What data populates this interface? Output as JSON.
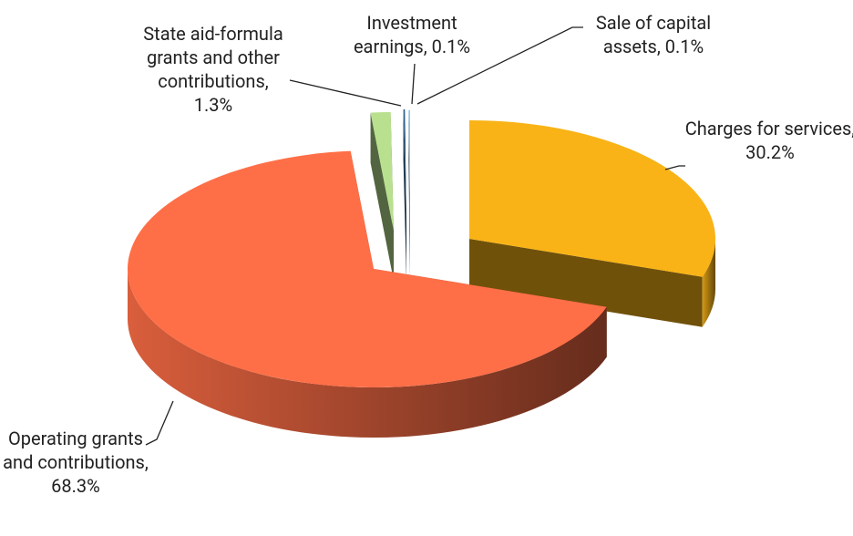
{
  "chart_data": {
    "type": "pie3d",
    "categories": [
      "Charges for services, 30.2%",
      "Operating grants and contributions, 68.3%",
      "State aid-formula grants and other contributions, 1.3%",
      "Investment earnings, 0.1%",
      "Sale of capital assets, 0.1%"
    ],
    "values": [
      30.2,
      68.3,
      1.3,
      0.1,
      0.1
    ],
    "colors": [
      "#f9b316",
      "#ff6f47",
      "#b9e08f",
      "#2f5f8a",
      "#8fc7e8"
    ]
  }
}
